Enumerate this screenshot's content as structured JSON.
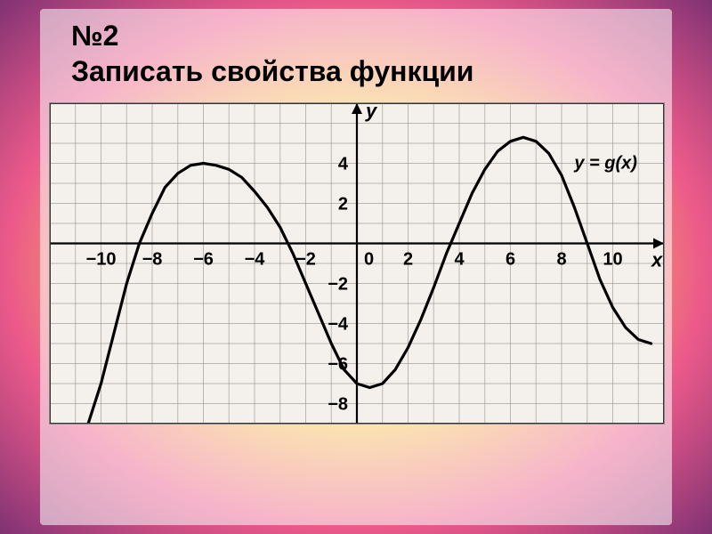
{
  "title_line1": "№2",
  "title_line2": "Записать свойства функции",
  "title_fontsize": 32,
  "title_fontweight": "bold",
  "chart": {
    "type": "line",
    "caption": "y = g(x)",
    "caption_fontsize": 20,
    "caption_fontstyle": "italic",
    "background_color": "#f4f1ec",
    "grid_color": "#8c8884",
    "grid_stroke": 1,
    "border_color": "#333333",
    "axis_color": "#000000",
    "axis_stroke": 2.2,
    "curve_color": "#000000",
    "curve_stroke": 3.2,
    "x_axis_label": "x",
    "y_axis_label": "y",
    "axis_label_fontsize": 22,
    "tick_fontsize": 20,
    "tick_fontweight": "bold",
    "xlim": [
      -12,
      12
    ],
    "ylim": [
      -9,
      7
    ],
    "xtick_step": 2,
    "ytick_step": 2,
    "xtick_labels": [
      -10,
      -8,
      -6,
      -4,
      -2,
      0,
      2,
      4,
      6,
      8,
      10
    ],
    "ytick_labels": [
      4,
      2,
      -2,
      -4,
      -6,
      -8
    ],
    "curve_points": [
      [
        -10.5,
        -9.0
      ],
      [
        -10.0,
        -7.0
      ],
      [
        -9.5,
        -4.5
      ],
      [
        -9.0,
        -2.0
      ],
      [
        -8.5,
        0.0
      ],
      [
        -8.0,
        1.5
      ],
      [
        -7.5,
        2.8
      ],
      [
        -7.0,
        3.5
      ],
      [
        -6.5,
        3.9
      ],
      [
        -6.0,
        4.0
      ],
      [
        -5.5,
        3.9
      ],
      [
        -5.0,
        3.7
      ],
      [
        -4.5,
        3.3
      ],
      [
        -4.0,
        2.6
      ],
      [
        -3.5,
        1.8
      ],
      [
        -3.0,
        0.8
      ],
      [
        -2.5,
        -0.5
      ],
      [
        -2.0,
        -2.0
      ],
      [
        -1.5,
        -3.5
      ],
      [
        -1.0,
        -5.0
      ],
      [
        -0.5,
        -6.3
      ],
      [
        0.0,
        -7.0
      ],
      [
        0.5,
        -7.2
      ],
      [
        1.0,
        -7.0
      ],
      [
        1.5,
        -6.3
      ],
      [
        2.0,
        -5.2
      ],
      [
        2.5,
        -3.8
      ],
      [
        3.0,
        -2.2
      ],
      [
        3.5,
        -0.5
      ],
      [
        4.0,
        1.0
      ],
      [
        4.5,
        2.5
      ],
      [
        5.0,
        3.7
      ],
      [
        5.5,
        4.6
      ],
      [
        6.0,
        5.1
      ],
      [
        6.5,
        5.3
      ],
      [
        7.0,
        5.1
      ],
      [
        7.5,
        4.5
      ],
      [
        8.0,
        3.4
      ],
      [
        8.5,
        1.8
      ],
      [
        9.0,
        0.0
      ],
      [
        9.5,
        -1.8
      ],
      [
        10.0,
        -3.2
      ],
      [
        10.5,
        -4.2
      ],
      [
        11.0,
        -4.8
      ],
      [
        11.5,
        -5.0
      ]
    ]
  },
  "gradient_colors": [
    "#f7d24a",
    "#ec5a8a",
    "#6b2a6f",
    "#ffffff"
  ]
}
